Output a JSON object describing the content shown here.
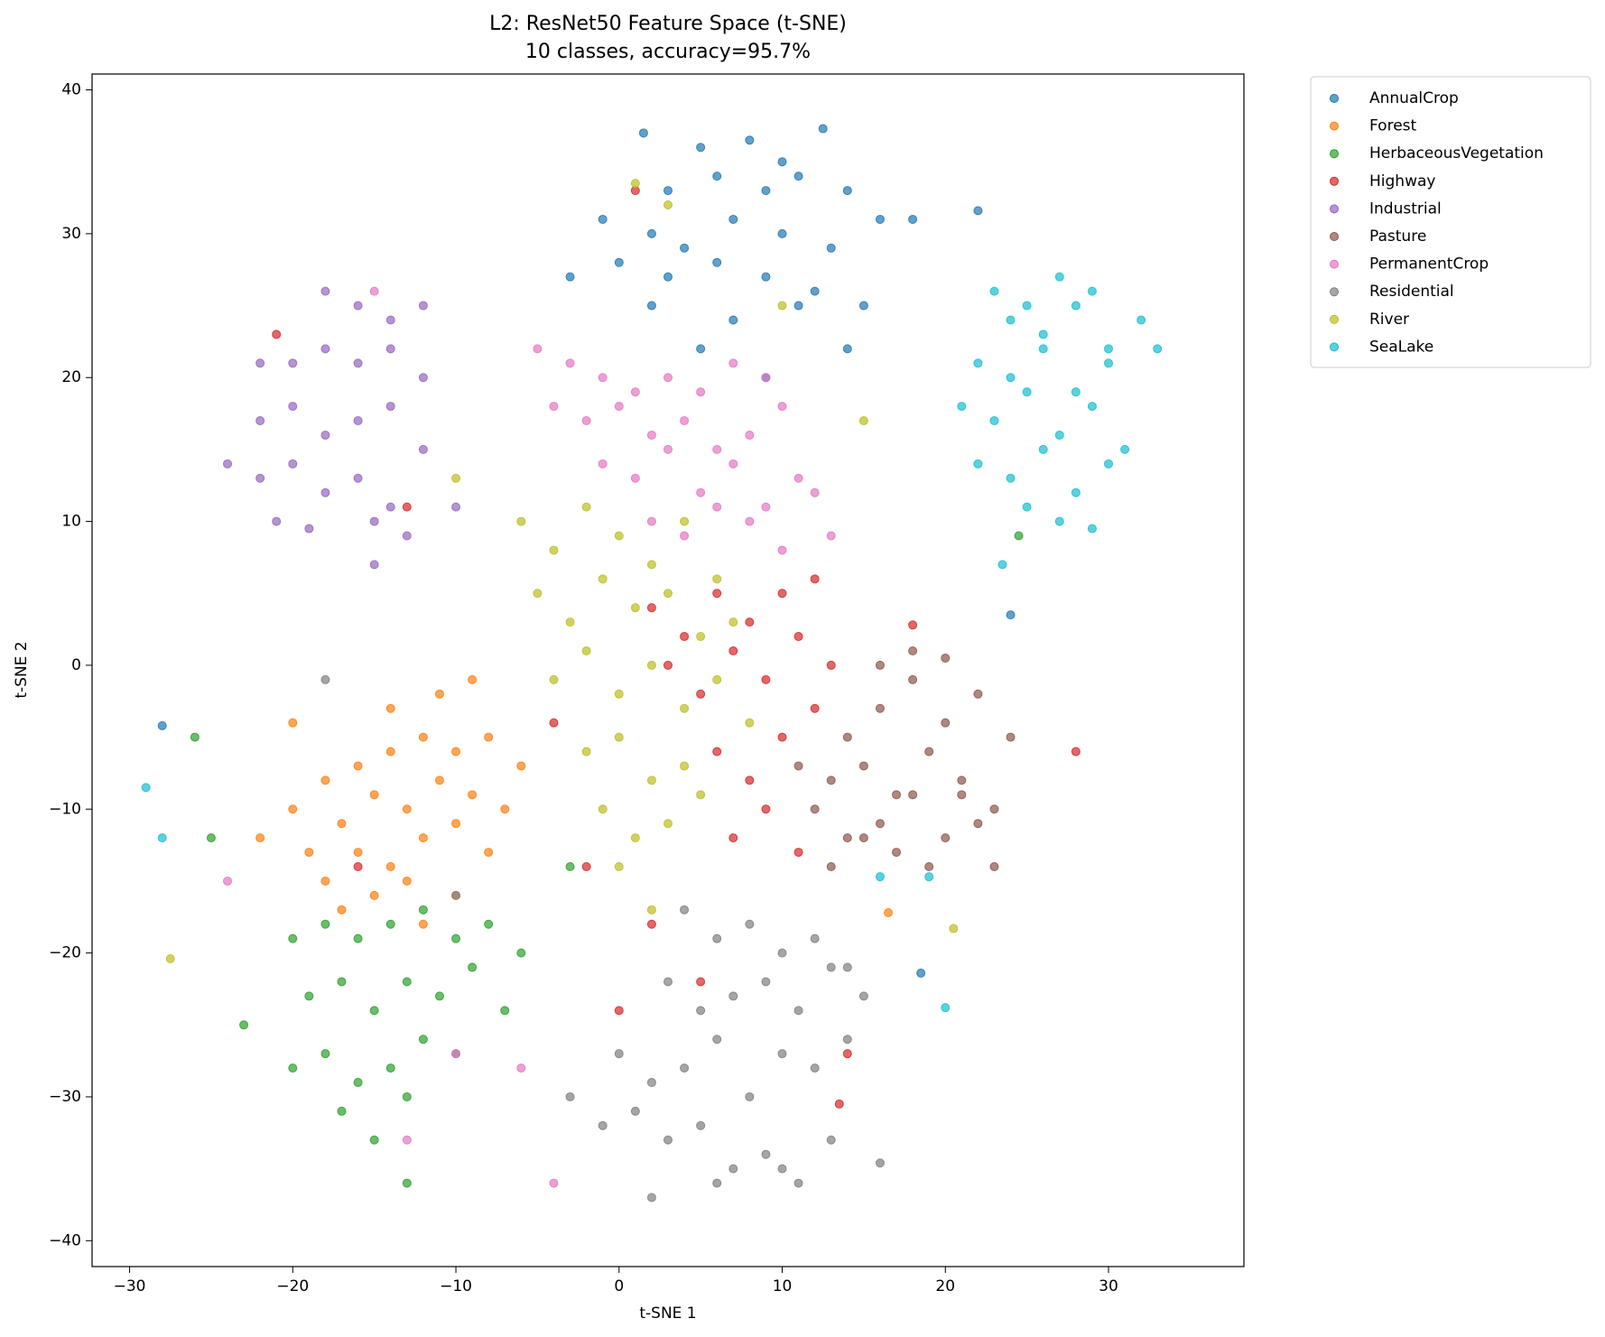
{
  "chart_data": {
    "type": "scatter",
    "title": "L2: ResNet50 Feature Space (t-SNE)",
    "subtitle": "10 classes, accuracy=95.7%",
    "x_label": "t-SNE 1",
    "y_label": "t-SNE 2",
    "xlim": [
      -32.3,
      38.3
    ],
    "ylim": [
      -41.8,
      41.1
    ],
    "xticks": [
      {
        "value": -30,
        "label": "−30"
      },
      {
        "value": -20,
        "label": "−20"
      },
      {
        "value": -10,
        "label": "−10"
      },
      0,
      10,
      20,
      30
    ],
    "yticks": [
      {
        "value": -40,
        "label": "−40"
      },
      {
        "value": -30,
        "label": "−30"
      },
      {
        "value": -20,
        "label": "−20"
      },
      {
        "value": -10,
        "label": "−10"
      },
      0,
      10,
      20,
      30,
      40
    ],
    "legend": "outside-upper-right",
    "series": [
      {
        "name": "AnnualCrop",
        "color": "#1f77b4",
        "x": [
          1.5,
          5,
          8,
          10,
          12.5,
          3,
          6,
          9,
          11,
          14,
          -1,
          2,
          4,
          7,
          10,
          13,
          16,
          0,
          3,
          6,
          9,
          12,
          15,
          18,
          -3,
          2,
          7,
          11,
          14,
          22,
          24,
          -28,
          18.5,
          5,
          9
        ],
        "y": [
          37,
          36,
          36.5,
          35,
          37.3,
          33,
          34,
          33,
          34,
          33,
          31,
          30,
          29,
          31,
          30,
          29,
          31,
          28,
          27,
          28,
          27,
          26,
          25,
          31,
          27,
          25,
          24,
          25,
          22,
          31.6,
          3.5,
          -4.2,
          -21.4,
          22,
          20
        ]
      },
      {
        "name": "Forest",
        "color": "#ff7f0e",
        "x": [
          -20,
          -18,
          -16,
          -14,
          -12,
          -10,
          -8,
          -6,
          -19,
          -17,
          -15,
          -13,
          -11,
          -9,
          -7,
          -18,
          -16,
          -14,
          -12,
          -10,
          -8,
          -17,
          -15,
          -13,
          -11,
          -9,
          -14,
          -12,
          -10,
          16.5,
          -22,
          -20
        ],
        "y": [
          -10,
          -8,
          -7,
          -6,
          -5,
          -6,
          -5,
          -7,
          -13,
          -11,
          -9,
          -10,
          -8,
          -9,
          -10,
          -15,
          -13,
          -14,
          -12,
          -11,
          -13,
          -17,
          -16,
          -15,
          -2,
          -1,
          -3,
          -18,
          -16,
          -17.2,
          -12,
          -4
        ]
      },
      {
        "name": "HerbaceousVegetation",
        "color": "#2ca02c",
        "x": [
          -20,
          -18,
          -16,
          -14,
          -12,
          -10,
          -8,
          -6,
          -19,
          -17,
          -15,
          -13,
          -11,
          -9,
          -7,
          -20,
          -18,
          -16,
          -14,
          -12,
          -10,
          -17,
          -15,
          -13,
          -25,
          -23,
          -26,
          -13,
          -3,
          24.5
        ],
        "y": [
          -19,
          -18,
          -19,
          -18,
          -17,
          -19,
          -18,
          -20,
          -23,
          -22,
          -24,
          -22,
          -23,
          -21,
          -24,
          -28,
          -27,
          -29,
          -28,
          -26,
          -27,
          -31,
          -33,
          -36,
          -12,
          -25,
          -5,
          -30,
          -14,
          9
        ]
      },
      {
        "name": "Highway",
        "color": "#d62728",
        "x": [
          2,
          4,
          6,
          8,
          10,
          12,
          3,
          5,
          7,
          9,
          11,
          13,
          6,
          8,
          10,
          12,
          7,
          9,
          11,
          -13,
          -21,
          -16,
          -2,
          2,
          14,
          18,
          28,
          1,
          0,
          5,
          -4,
          13.5
        ],
        "y": [
          4,
          2,
          5,
          3,
          5,
          6,
          0,
          -2,
          1,
          -1,
          2,
          0,
          -6,
          -8,
          -5,
          -3,
          -12,
          -10,
          -13,
          11,
          23,
          -14,
          -14,
          -18,
          -27,
          2.8,
          -6,
          33,
          -24,
          -22,
          -4,
          -30.5
        ]
      },
      {
        "name": "Industrial",
        "color": "#9467bd",
        "x": [
          -18,
          -16,
          -14,
          -12,
          -20,
          -18,
          -16,
          -14,
          -12,
          -22,
          -20,
          -18,
          -16,
          -14,
          -12,
          -24,
          -22,
          -20,
          -18,
          -16,
          -14,
          -21,
          -19,
          -15,
          -13,
          -10,
          -22,
          -15
        ],
        "y": [
          26,
          25,
          24,
          25,
          21,
          22,
          21,
          22,
          20,
          17,
          18,
          16,
          17,
          18,
          15,
          14,
          13,
          14,
          12,
          13,
          11,
          10,
          9.5,
          10,
          9,
          11,
          21,
          7
        ]
      },
      {
        "name": "Pasture",
        "color": "#8c564b",
        "x": [
          14,
          16,
          18,
          20,
          22,
          24,
          13,
          15,
          17,
          19,
          21,
          23,
          12,
          14,
          16,
          18,
          20,
          22,
          13,
          15,
          17,
          19,
          21,
          16,
          18,
          20,
          11,
          23
        ],
        "y": [
          -5,
          -3,
          -1,
          -4,
          -2,
          -5,
          -8,
          -7,
          -9,
          -6,
          -8,
          -10,
          -10,
          -12,
          -11,
          -9,
          -12,
          -11,
          -14,
          -12,
          -13,
          -14,
          -9,
          0,
          1,
          0.5,
          -7,
          -14
        ]
      },
      {
        "name": "PermanentCrop",
        "color": "#e377c2",
        "x": [
          -5,
          -3,
          -1,
          1,
          3,
          5,
          7,
          9,
          -4,
          -2,
          0,
          2,
          4,
          6,
          8,
          10,
          12,
          -1,
          1,
          3,
          5,
          7,
          9,
          11,
          13,
          2,
          4,
          6,
          8,
          10,
          -15,
          -24,
          -10,
          -6,
          -13,
          -4
        ],
        "y": [
          22,
          21,
          20,
          19,
          20,
          19,
          21,
          20,
          18,
          17,
          18,
          16,
          17,
          15,
          16,
          18,
          12,
          14,
          13,
          15,
          12,
          14,
          11,
          13,
          9,
          10,
          9,
          11,
          10,
          8,
          26,
          -15,
          -27,
          -28,
          -33,
          -36
        ]
      },
      {
        "name": "Residential",
        "color": "#7f7f7f",
        "x": [
          4,
          6,
          8,
          10,
          12,
          14,
          3,
          5,
          7,
          9,
          11,
          13,
          15,
          0,
          2,
          4,
          6,
          8,
          10,
          12,
          14,
          -3,
          -1,
          1,
          3,
          5,
          7,
          9,
          11,
          13,
          2,
          6,
          10,
          -18,
          -10,
          16
        ],
        "y": [
          -17,
          -19,
          -18,
          -20,
          -19,
          -21,
          -22,
          -24,
          -23,
          -22,
          -24,
          -21,
          -23,
          -27,
          -29,
          -28,
          -26,
          -30,
          -27,
          -28,
          -26,
          -30,
          -32,
          -31,
          -33,
          -32,
          -35,
          -34,
          -36,
          -33,
          -37,
          -36,
          -35,
          -1,
          -16,
          -34.6
        ]
      },
      {
        "name": "River",
        "color": "#bcbd22",
        "x": [
          -6,
          -4,
          -2,
          0,
          2,
          4,
          6,
          -5,
          -3,
          -1,
          1,
          3,
          5,
          7,
          -4,
          -2,
          0,
          2,
          4,
          6,
          8,
          -2,
          0,
          2,
          4,
          -1,
          1,
          3,
          5,
          0,
          2,
          -10,
          3,
          20.5,
          -27.5,
          1,
          10,
          15
        ],
        "y": [
          10,
          8,
          11,
          9,
          7,
          10,
          6,
          5,
          3,
          6,
          4,
          5,
          2,
          3,
          -1,
          1,
          -2,
          0,
          -3,
          -1,
          -4,
          -6,
          -5,
          -8,
          -7,
          -10,
          -12,
          -11,
          -9,
          -14,
          -17,
          13,
          32,
          -18.3,
          -20.4,
          33.5,
          25,
          17
        ]
      },
      {
        "name": "SeaLake",
        "color": "#17becf",
        "x": [
          23,
          25,
          27,
          29,
          24,
          26,
          28,
          30,
          32,
          22,
          24,
          26,
          28,
          30,
          33,
          21,
          23,
          25,
          27,
          29,
          31,
          22,
          24,
          26,
          28,
          30,
          25,
          27,
          29,
          -29,
          -28,
          20,
          19,
          16,
          23.5
        ],
        "y": [
          26,
          25,
          27,
          26,
          24,
          23,
          25,
          22,
          24,
          21,
          20,
          22,
          19,
          21,
          22,
          18,
          17,
          19,
          16,
          18,
          15,
          14,
          13,
          15,
          12,
          14,
          11,
          10,
          9.5,
          -8.5,
          -12,
          -23.8,
          -14.7,
          -14.7,
          7
        ]
      }
    ]
  }
}
